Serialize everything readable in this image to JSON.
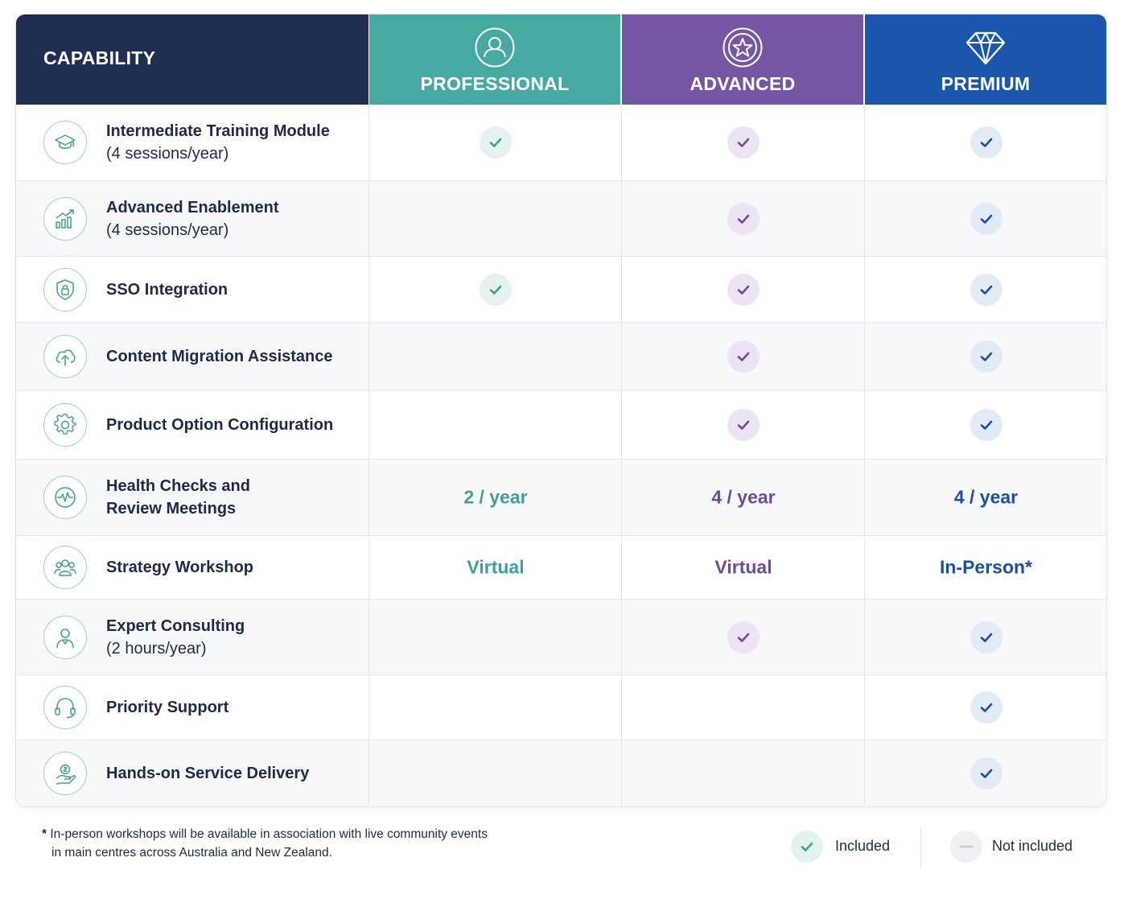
{
  "header": {
    "capability_label": "CAPABILITY",
    "tiers": [
      {
        "label": "PROFESSIONAL",
        "icon": "person-icon",
        "color": "#47aaa2"
      },
      {
        "label": "ADVANCED",
        "icon": "star-badge-icon",
        "color": "#7556a4"
      },
      {
        "label": "PREMIUM",
        "icon": "diamond-icon",
        "color": "#1a56ad"
      }
    ]
  },
  "rows": [
    {
      "title": "Intermediate Training Module",
      "subtitle": "(4 sessions/year)",
      "icon": "graduation-cap-icon",
      "pro": "check",
      "adv": "check",
      "pre": "check"
    },
    {
      "title": "Advanced Enablement",
      "subtitle": "(4 sessions/year)",
      "icon": "growth-chart-icon",
      "pro": "",
      "adv": "check",
      "pre": "check"
    },
    {
      "title": "SSO Integration",
      "subtitle": "",
      "icon": "shield-lock-icon",
      "pro": "check",
      "adv": "check",
      "pre": "check"
    },
    {
      "title": "Content Migration Assistance",
      "subtitle": "",
      "icon": "cloud-upload-icon",
      "pro": "",
      "adv": "check",
      "pre": "check"
    },
    {
      "title": "Product Option Configuration",
      "subtitle": "",
      "icon": "gear-icon",
      "pro": "",
      "adv": "check",
      "pre": "check"
    },
    {
      "title": "Health Checks and",
      "subtitle": "Review Meetings",
      "subtitle_bold": true,
      "icon": "heartbeat-icon",
      "pro": "2 / year",
      "adv": "4 / year",
      "pre": "4 / year"
    },
    {
      "title": "Strategy Workshop",
      "subtitle": "",
      "icon": "group-icon",
      "pro": "Virtual",
      "adv": "Virtual",
      "pre": "In-Person*"
    },
    {
      "title": "Expert Consulting",
      "subtitle": "(2 hours/year)",
      "icon": "consultant-icon",
      "pro": "",
      "adv": "check",
      "pre": "check"
    },
    {
      "title": "Priority Support",
      "subtitle": "",
      "icon": "headset-icon",
      "pro": "",
      "adv": "",
      "pre": "check"
    },
    {
      "title": "Hands-on Service Delivery",
      "subtitle": "",
      "icon": "hand-service-icon",
      "pro": "",
      "adv": "",
      "pre": "check"
    }
  ],
  "footnote": {
    "star": "*",
    "line1": "In-person workshops will be available in association with live community events",
    "line2": "in main centres across Australia and New Zealand."
  },
  "legend": {
    "included": "Included",
    "not_included": "Not included"
  },
  "colors": {
    "navy": "#1f2e52",
    "teal": "#47aaa2",
    "purple": "#7556a4",
    "blue": "#1a56ad"
  }
}
